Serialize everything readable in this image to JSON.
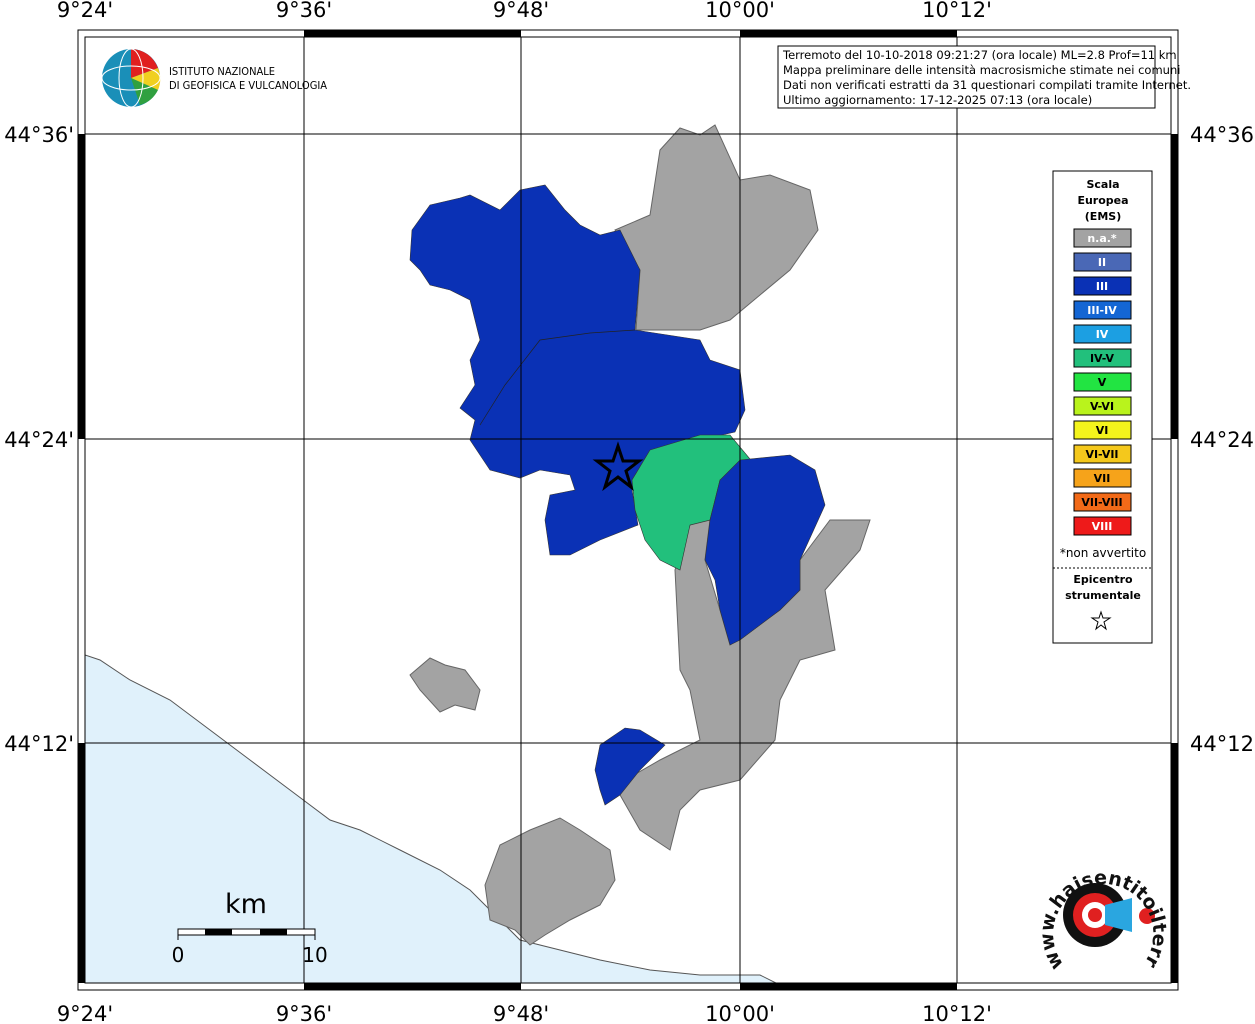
{
  "info_box": [
    "Terremoto del 10-10-2018 09:21:27 (ora locale) ML=2.8 Prof=11 km",
    "Mappa preliminare delle intensità macrosismiche stimate nei comuni",
    "Dati non verificati estratti da 31 questionari compilati tramite Internet.",
    "Ultimo aggiornamento: 17-12-2025 07:13 (ora locale)"
  ],
  "logo": {
    "line1": "ISTITUTO NAZIONALE",
    "line2": "DI GEOFISICA E VULCANOLOGIA"
  },
  "lon_labels": [
    "9°24'",
    "9°36'",
    "9°48'",
    "10°00'",
    "10°12'"
  ],
  "lat_labels": [
    "44°36'",
    "44°24'",
    "44°12'"
  ],
  "legend": {
    "title": [
      "Scala",
      "Europea",
      "(EMS)"
    ],
    "items": [
      {
        "label": "n.a.*",
        "color": "#a3a3a3",
        "text_color": "#ffffff"
      },
      {
        "label": "II",
        "color": "#4a68b6",
        "text_color": "#ffffff"
      },
      {
        "label": "III",
        "color": "#0a31b5",
        "text_color": "#ffffff"
      },
      {
        "label": "III-IV",
        "color": "#1466d4",
        "text_color": "#ffffff"
      },
      {
        "label": "IV",
        "color": "#1c9fe2",
        "text_color": "#ffffff"
      },
      {
        "label": "IV-V",
        "color": "#22c07c",
        "text_color": "#000000"
      },
      {
        "label": "V",
        "color": "#22e442",
        "text_color": "#000000"
      },
      {
        "label": "V-VI",
        "color": "#b9f31c",
        "text_color": "#000000"
      },
      {
        "label": "VI",
        "color": "#f4f41c",
        "text_color": "#000000"
      },
      {
        "label": "VI-VII",
        "color": "#f4c81c",
        "text_color": "#000000"
      },
      {
        "label": "VII",
        "color": "#f6a31a",
        "text_color": "#000000"
      },
      {
        "label": "VII-VIII",
        "color": "#f26a18",
        "text_color": "#000000"
      },
      {
        "label": "VIII",
        "color": "#ee1a1a",
        "text_color": "#ffffff"
      }
    ],
    "note": "*non avvertito",
    "epicenter": [
      "Epicentro",
      "strumentale"
    ]
  },
  "scale_bar": {
    "unit": "km",
    "start": "0",
    "end": "10"
  },
  "site_logo": "www.haisentitoilterremoto.it"
}
